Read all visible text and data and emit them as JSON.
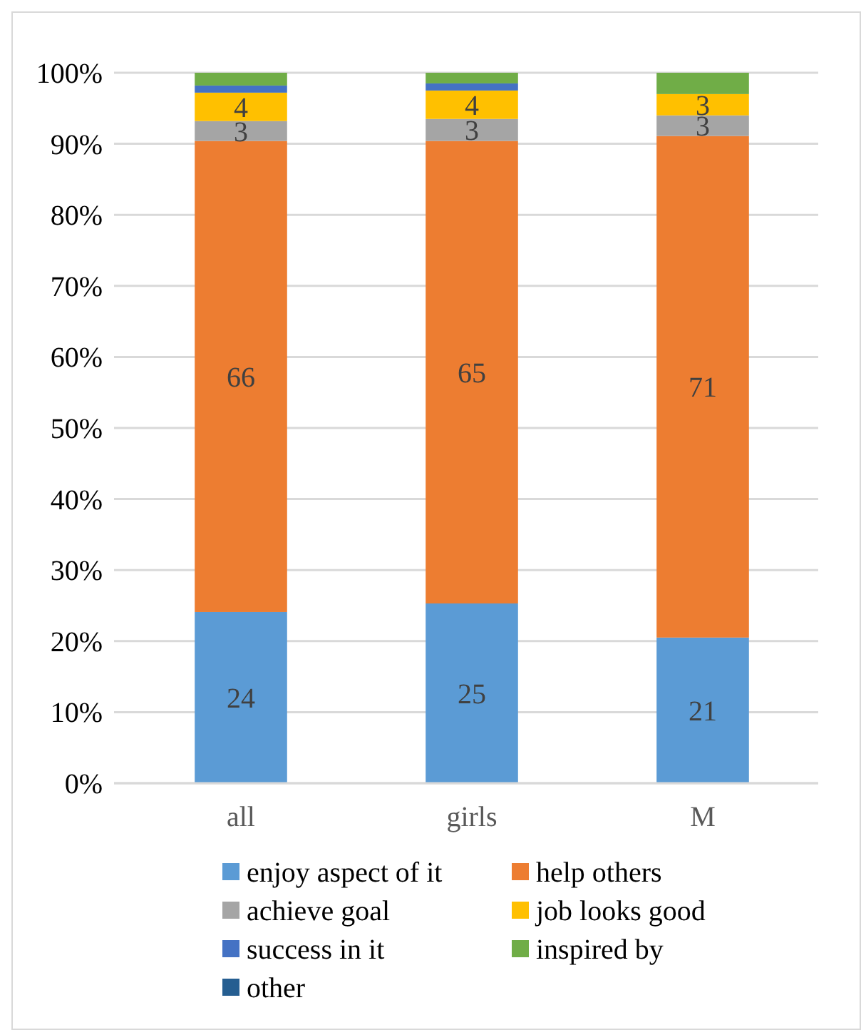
{
  "chart_data": {
    "type": "bar",
    "stacked": true,
    "categories": [
      "all",
      "girls",
      "M"
    ],
    "series": [
      {
        "name": "enjoy aspect of it",
        "color": "#5b9bd5",
        "values": [
          24.1,
          25.3,
          20.5
        ],
        "value_labels": [
          "24",
          "25",
          "21"
        ]
      },
      {
        "name": "help others",
        "color": "#ed7d31",
        "values": [
          66.3,
          65.1,
          70.6
        ],
        "value_labels": [
          "66",
          "65",
          "71"
        ]
      },
      {
        "name": "achieve goal",
        "color": "#a5a5a5",
        "values": [
          2.8,
          3.1,
          2.9
        ],
        "value_labels": [
          "3",
          "3",
          "3"
        ]
      },
      {
        "name": "job looks good",
        "color": "#ffc000",
        "values": [
          4.0,
          4.0,
          3.0
        ],
        "value_labels": [
          "4",
          "4",
          "3"
        ]
      },
      {
        "name": "success in it",
        "color": "#4472c4",
        "values": [
          1.0,
          1.0,
          0
        ]
      },
      {
        "name": "inspired by",
        "color": "#70ad47",
        "values": [
          1.8,
          1.5,
          3.0
        ]
      },
      {
        "name": "other",
        "color": "#255e91",
        "values": [
          0,
          0,
          0
        ]
      }
    ],
    "ylim": [
      0,
      100
    ],
    "yticks": [
      {
        "value": 0,
        "label": "0%"
      },
      {
        "value": 10,
        "label": "10%"
      },
      {
        "value": 20,
        "label": "20%"
      },
      {
        "value": 30,
        "label": "30%"
      },
      {
        "value": 40,
        "label": "40%"
      },
      {
        "value": 50,
        "label": "50%"
      },
      {
        "value": 60,
        "label": "60%"
      },
      {
        "value": 70,
        "label": "70%"
      },
      {
        "value": 80,
        "label": "80%"
      },
      {
        "value": 90,
        "label": "90%"
      },
      {
        "value": 100,
        "label": "100%"
      }
    ],
    "grid": "y",
    "legend": "bottom"
  }
}
